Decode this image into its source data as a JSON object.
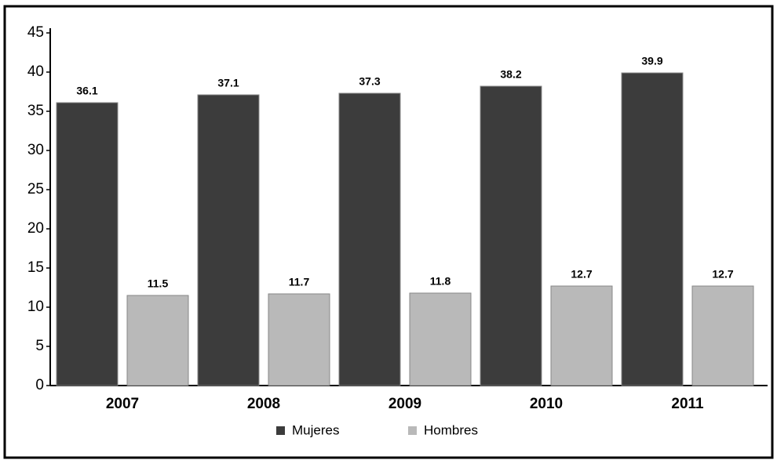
{
  "chart_data": {
    "type": "bar",
    "categories": [
      "2007",
      "2008",
      "2009",
      "2010",
      "2011"
    ],
    "series": [
      {
        "name": "Mujeres",
        "color": "#3c3c3c",
        "values": [
          36.1,
          37.1,
          37.3,
          38.2,
          39.9
        ]
      },
      {
        "name": "Hombres",
        "color": "#b9b9b9",
        "values": [
          11.5,
          11.7,
          11.8,
          12.7,
          12.7
        ]
      }
    ],
    "ylim": [
      0,
      45
    ],
    "yticks": [
      0,
      5,
      10,
      15,
      20,
      25,
      30,
      35,
      40,
      45
    ],
    "grid": false,
    "legend": "bottom"
  }
}
